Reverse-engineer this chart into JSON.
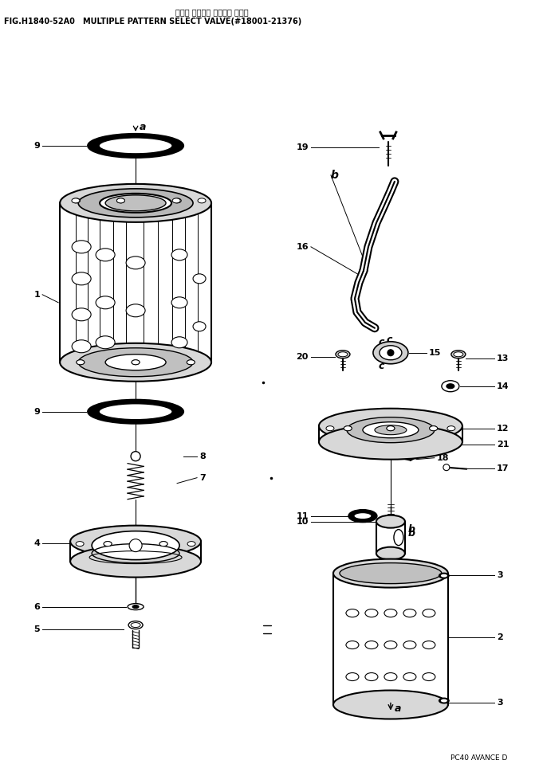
{
  "title_jp": "マルチ パターン セレクト バルブ",
  "title_en": "FIG.H1840-52A0   MULTIPLE PATTERN SELECT VALVE(#18001-21376)",
  "footer": "PC40 AVANCE D",
  "bg_color": "#ffffff"
}
